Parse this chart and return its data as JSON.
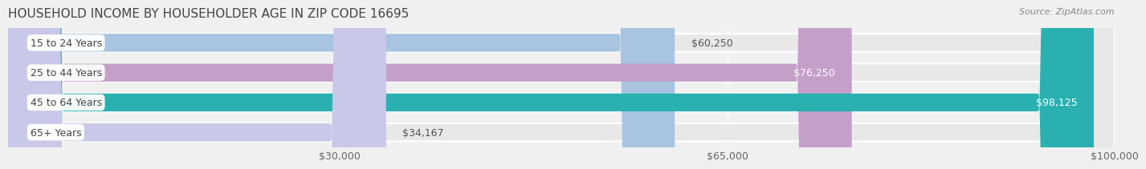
{
  "title": "HOUSEHOLD INCOME BY HOUSEHOLDER AGE IN ZIP CODE 16695",
  "source": "Source: ZipAtlas.com",
  "categories": [
    "15 to 24 Years",
    "25 to 44 Years",
    "45 to 64 Years",
    "65+ Years"
  ],
  "values": [
    60250,
    76250,
    98125,
    34167
  ],
  "bar_colors": [
    "#a8c4e0",
    "#c4a0c8",
    "#2ab0b0",
    "#c8c8e8"
  ],
  "bg_color": "#f0f0f0",
  "bar_bg_color": "#e8e8e8",
  "xmax": 100000,
  "xticks": [
    30000,
    65000,
    100000
  ],
  "xtick_labels": [
    "$30,000",
    "$65,000",
    "$100,000"
  ],
  "value_labels": [
    "$60,250",
    "$76,250",
    "$98,125",
    "$34,167"
  ],
  "label_inside": [
    false,
    true,
    true,
    false
  ],
  "label_colors_inside": [
    "#ffffff",
    "#ffffff"
  ],
  "bar_height": 0.6,
  "title_fontsize": 11,
  "label_fontsize": 9,
  "tick_fontsize": 9
}
